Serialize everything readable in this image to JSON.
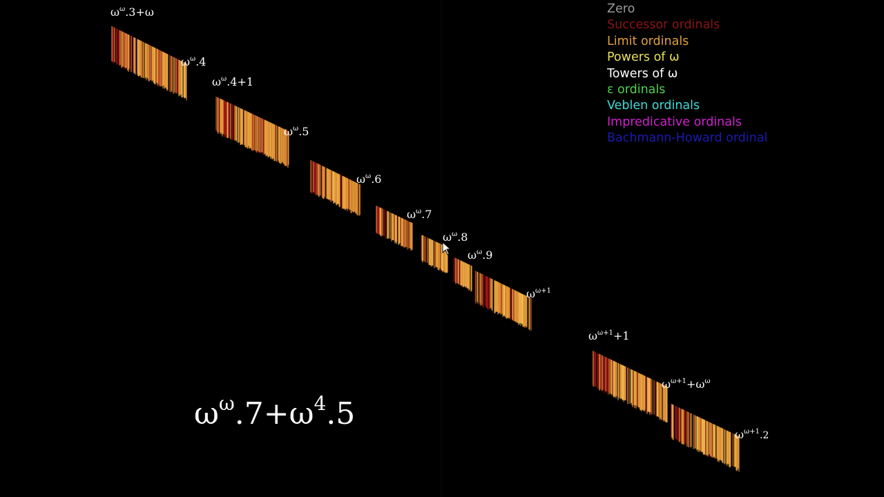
{
  "legend": {
    "items": [
      {
        "key": "zero",
        "label": "Zero",
        "color": "#9a9a9a"
      },
      {
        "key": "successor",
        "label": "Successor ordinals",
        "color": "#8a1414"
      },
      {
        "key": "limit",
        "label": "Limit ordinals",
        "color": "#e0a040"
      },
      {
        "key": "powers",
        "label": "Powers of ω",
        "color": "#e8e050"
      },
      {
        "key": "towers",
        "label": "Towers of ω",
        "color": "#ffffff"
      },
      {
        "key": "epsilon",
        "label": "ε ordinals",
        "color": "#50d050"
      },
      {
        "key": "veblen",
        "label": "Veblen ordinals",
        "color": "#40d8d8"
      },
      {
        "key": "impredicative",
        "label": "Impredicative ordinals",
        "color": "#d020d0"
      },
      {
        "key": "bachmann",
        "label": "Bachmann-Howard ordinal",
        "color": "#1a1ab0"
      }
    ]
  },
  "current_ordinal": {
    "base": "ω",
    "sup1": "ω",
    "mid": ".7+ω",
    "sup2": "4",
    "tail": ".5"
  },
  "ordinal_labels": {
    "w3w": {
      "base": "ω",
      "sup": "ω",
      "rest": ".3+ω"
    },
    "w4": {
      "base": "ω",
      "sup": "ω",
      "rest": ".4"
    },
    "w4p1": {
      "base": "ω",
      "sup": "ω",
      "rest": ".4+1"
    },
    "w5": {
      "base": "ω",
      "sup": "ω",
      "rest": ".5"
    },
    "w6": {
      "base": "ω",
      "sup": "ω",
      "rest": ".6"
    },
    "w7": {
      "base": "ω",
      "sup": "ω",
      "rest": ".7"
    },
    "w8": {
      "base": "ω",
      "sup": "ω",
      "rest": ".8"
    },
    "w9": {
      "base": "ω",
      "sup": "ω",
      "rest": ".9"
    },
    "ww1": {
      "base": "ω",
      "sup": "ω+1",
      "rest": ""
    },
    "ww1p1": {
      "base": "ω",
      "sup": "ω+1",
      "rest": "+1"
    },
    "ww1pww": {
      "base": "ω",
      "sup": "ω+1",
      "rest": "+ω",
      "sup2": "ω"
    },
    "ww1x2": {
      "base": "ω",
      "sup": "ω+1",
      "rest": ".2"
    }
  }
}
